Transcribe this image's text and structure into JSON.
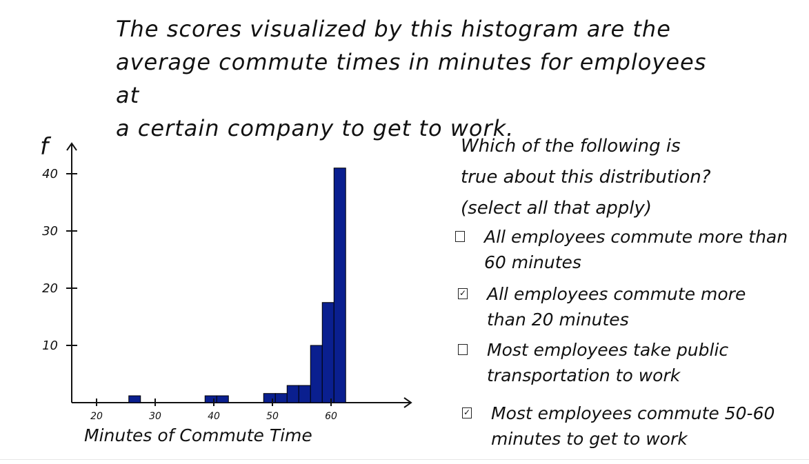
{
  "intro_text": "The scores visualized by this histogram are the\naverage commute times in minutes for employees at\na certain company to get to work.",
  "question": "Which of the following is\ntrue about this distribution?\n(select all that apply)",
  "options": [
    {
      "label": "All employees commute more than\n60 minutes",
      "checked": false
    },
    {
      "label": "All employees commute more\nthan 20 minutes",
      "checked": true
    },
    {
      "label": "Most employees take public\ntransportation to work",
      "checked": false
    },
    {
      "label": "Most employees commute 50-60\nminutes to get to work",
      "checked": true
    }
  ],
  "chart_data": {
    "type": "bar",
    "xlabel": "Minutes of Commute Time",
    "ylabel": "f",
    "xticks": [
      20,
      30,
      40,
      50,
      60
    ],
    "yticks": [
      10,
      20,
      30,
      40
    ],
    "xlim": [
      15,
      75
    ],
    "ylim": [
      0,
      46
    ],
    "bar_color": "#0a1f8f",
    "bins": [
      {
        "x0": 25.5,
        "x1": 27.5,
        "value": 1.2
      },
      {
        "x0": 38.5,
        "x1": 40.5,
        "value": 1.2
      },
      {
        "x0": 40.5,
        "x1": 42.5,
        "value": 1.2
      },
      {
        "x0": 48.5,
        "x1": 50.5,
        "value": 1.6
      },
      {
        "x0": 50.5,
        "x1": 52.5,
        "value": 1.6
      },
      {
        "x0": 52.5,
        "x1": 54.5,
        "value": 3.0
      },
      {
        "x0": 54.5,
        "x1": 56.5,
        "value": 3.0
      },
      {
        "x0": 56.5,
        "x1": 58.5,
        "value": 10.0
      },
      {
        "x0": 58.5,
        "x1": 60.5,
        "value": 17.5
      },
      {
        "x0": 60.5,
        "x1": 62.5,
        "value": 41.0
      }
    ]
  }
}
